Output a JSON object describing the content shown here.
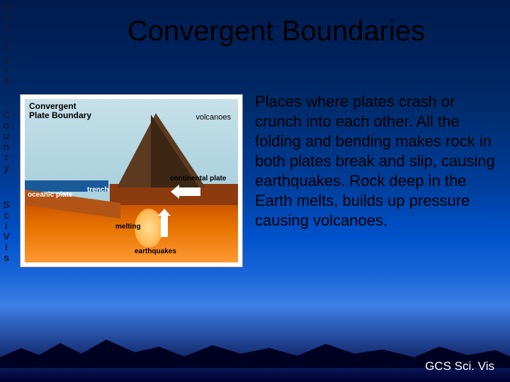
{
  "title": "Convergent Boundaries",
  "sidebar": {
    "word1": "Guilford",
    "word2": "County",
    "word3": "SciVis",
    "top1": 2,
    "top2": 155,
    "top3": 282
  },
  "diagram": {
    "title_line1": "Convergent",
    "title_line2": "Plate Boundary",
    "label_volcanoes": "volcanoes",
    "label_oceanic": "oceanic plate",
    "label_trench": "trench",
    "label_continental": "continental plate",
    "label_melting": "melting",
    "label_earthquakes": "earthquakes",
    "colors": {
      "sky": "#c7e1ea",
      "ocean": "#1a5a99",
      "oceanic_plate": "#b35417",
      "continental_plate": "#8c3b0f",
      "mantle_top": "#cc5500",
      "mantle_bottom": "#ff9933",
      "volcano": "#5c3a1f",
      "border": "#888888",
      "arrow": "#ffffff"
    }
  },
  "body": "Places where plates crash or crunch into each other. All the folding and bending makes rock in both plates break and slip, causing earthquakes. Rock deep in the Earth melts, builds up pressure causing volcanoes.",
  "footer": "GCS Sci. Vis",
  "slide": {
    "bg_gradient": [
      "#001a4d",
      "#002966",
      "#003d99",
      "#0052cc",
      "#1a66d9",
      "#3d7fe6",
      "#000033"
    ],
    "title_color": "#000000",
    "body_color": "#000000",
    "footer_color": "#ffffff",
    "title_fontsize": 40,
    "body_fontsize": 22
  }
}
